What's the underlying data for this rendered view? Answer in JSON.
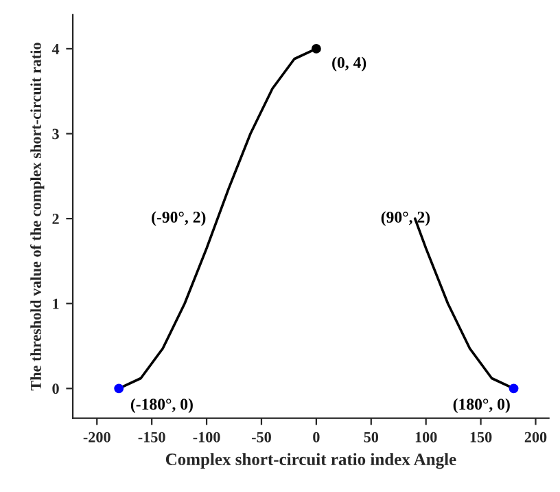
{
  "chart_data": {
    "type": "line",
    "xlabel": "Complex short-circuit ratio index Angle",
    "ylabel": "The threshold value of the complex short-circuit ratio",
    "xlim": [
      -222,
      212
    ],
    "ylim": [
      -0.35,
      4.4
    ],
    "xticks": [
      -200,
      -150,
      -100,
      -50,
      0,
      50,
      100,
      150,
      200
    ],
    "yticks": [
      0,
      1,
      2,
      3,
      4
    ],
    "grid": false,
    "legend": false,
    "series": [
      {
        "color": "#000000",
        "x": [
          -180,
          -160,
          -140,
          -120,
          -100,
          -90,
          -80,
          -60,
          -40,
          -20,
          0
        ],
        "values": [
          0,
          0.12,
          0.47,
          1.0,
          1.65,
          2,
          2.35,
          3.0,
          3.53,
          3.88,
          4
        ]
      },
      {
        "color": "#000000",
        "x": [
          90,
          100,
          120,
          140,
          160,
          180
        ],
        "values": [
          2,
          1.65,
          1.0,
          0.47,
          0.12,
          0
        ]
      },
      {
        "type": "scatter",
        "x": [
          -180,
          0,
          180
        ],
        "values": [
          0,
          4,
          0
        ],
        "colors": [
          "#0000ff",
          "#000000",
          "#0000ff"
        ]
      }
    ],
    "annotations": [
      {
        "text": "(0, 4)",
        "x": 0,
        "y": 4
      },
      {
        "text": "(-90°, 2)",
        "x": -90,
        "y": 2
      },
      {
        "text": "(90°, 2)",
        "x": 90,
        "y": 2
      },
      {
        "text": "(-180°, 0)",
        "x": -180,
        "y": 0
      },
      {
        "text": "(180°, 0)",
        "x": 180,
        "y": 0
      }
    ]
  }
}
